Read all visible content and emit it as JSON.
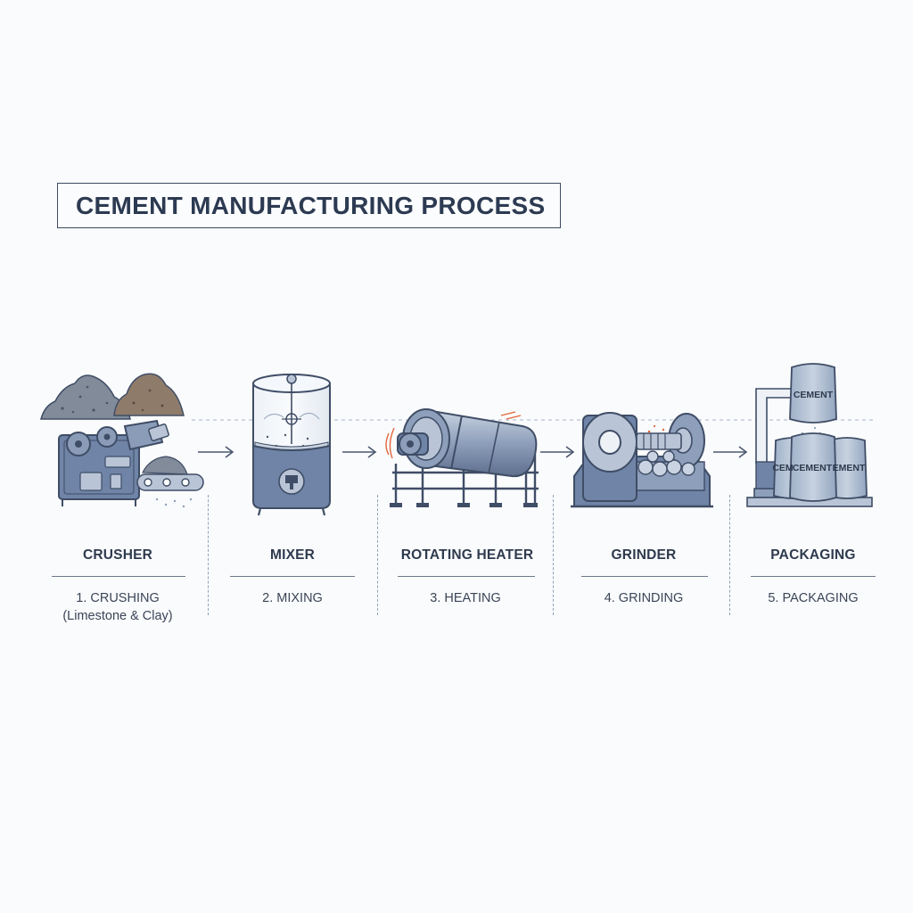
{
  "title": "CEMENT MANUFACTURING PROCESS",
  "stages": [
    {
      "machine": "CRUSHER",
      "step": "1. CRUSHING",
      "detail": "(Limestone & Clay)"
    },
    {
      "machine": "MIXER",
      "step": "2. MIXING",
      "detail": ""
    },
    {
      "machine": "ROTATING HEATER",
      "step": "3. HEATING",
      "detail": ""
    },
    {
      "machine": "GRINDER",
      "step": "4. GRINDING",
      "detail": ""
    },
    {
      "machine": "PACKAGING",
      "step": "5. PACKAGING",
      "detail": ""
    }
  ],
  "bag_labels": {
    "top": "CEMENT",
    "left": "CEM",
    "center": "CEMENT",
    "right": "EMENT"
  },
  "colors": {
    "steel": "#6f84a6",
    "steel_dark": "#3f4d66",
    "steel_light": "#b9c5d6",
    "clay": "#8d7a6a",
    "limestone": "#7e8896",
    "heat": "#e0673a",
    "divider": "#8ea0ba"
  }
}
